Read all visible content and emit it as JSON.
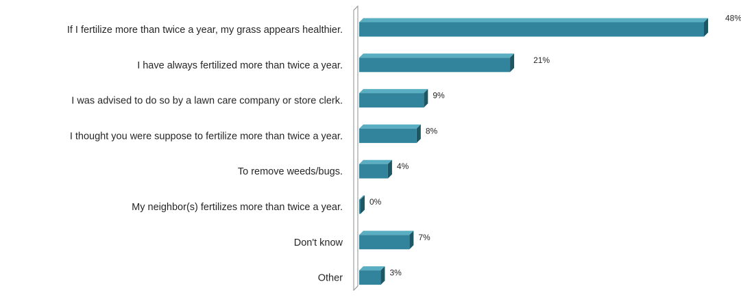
{
  "chart_data": {
    "type": "bar",
    "orientation": "horizontal",
    "style": "3d",
    "title": "",
    "xlabel": "",
    "ylabel": "",
    "categories": [
      "If I fertilize more  than twice a year, my grass appears healthier.",
      "I have always fertilized more than twice a year.",
      "I was advised to do so by a lawn care company or store clerk.",
      "I thought you were suppose to fertilize more than twice a year.",
      "To remove weeds/bugs.",
      "My neighbor(s) fertilizes more than twice a year.",
      "Don't know",
      "Other"
    ],
    "values": [
      48,
      21,
      9,
      8,
      4,
      0,
      7,
      3
    ],
    "data_labels": [
      "48%",
      "21%",
      "9%",
      "8%",
      "4%",
      "0%",
      "7%",
      "3%"
    ],
    "xlim": [
      0,
      48
    ],
    "grid": false,
    "legend": "none",
    "colors": {
      "bar_front": "#31849b",
      "bar_top": "#5aaec2",
      "bar_side": "#1f5664",
      "axis": "#8c8c8c",
      "text": "#262626"
    }
  }
}
